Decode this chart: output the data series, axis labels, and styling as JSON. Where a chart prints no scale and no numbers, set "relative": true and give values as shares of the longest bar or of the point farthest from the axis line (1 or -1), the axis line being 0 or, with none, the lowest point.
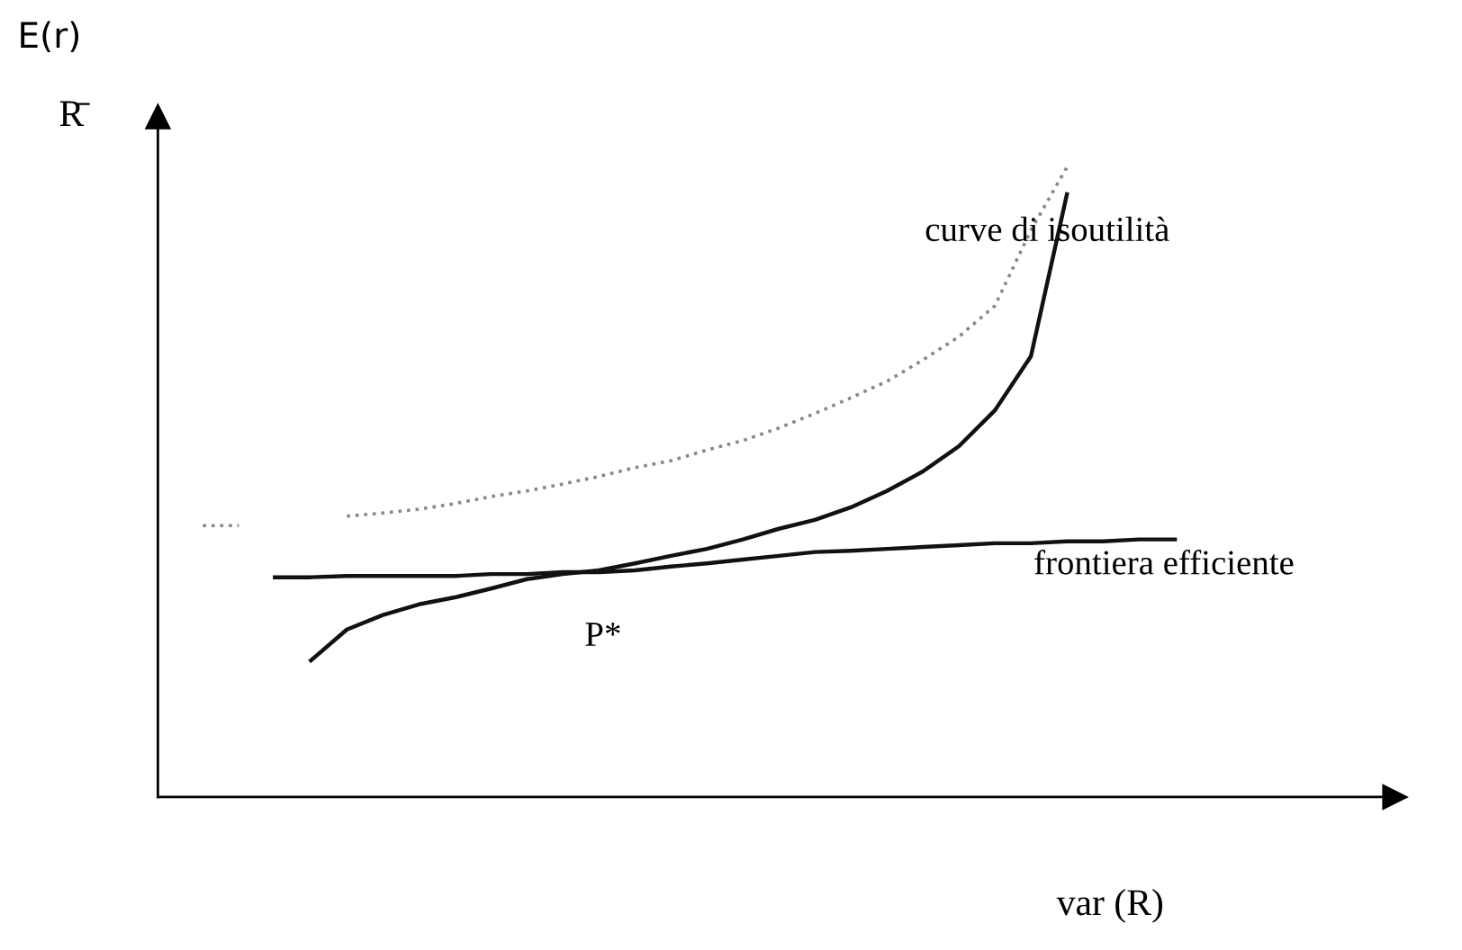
{
  "chart_data": {
    "type": "line",
    "relative": true,
    "title": "E(r)",
    "ylabel": "R̄",
    "xlabel": "var (R)",
    "categories": [
      null,
      null,
      null,
      null,
      null,
      null,
      null,
      null,
      null,
      null,
      null,
      null,
      null,
      null,
      null,
      null,
      null,
      null,
      null,
      null,
      null,
      null,
      null,
      null,
      null,
      null,
      null,
      null
    ],
    "series": [
      {
        "color": "#111111",
        "line_style": "solid",
        "values": [
          null,
          null,
          0.349,
          0.349,
          0.351,
          0.351,
          0.351,
          0.351,
          0.354,
          0.354,
          0.357,
          0.357,
          0.36,
          0.366,
          0.371,
          0.377,
          0.383,
          0.389,
          0.391,
          0.394,
          0.397,
          0.4,
          0.403,
          0.403,
          0.406,
          0.406,
          0.409,
          0.409
        ]
      },
      {
        "color": "#111111",
        "line_style": "solid",
        "values": [
          null,
          null,
          null,
          0.217,
          0.266,
          0.289,
          0.306,
          0.317,
          0.331,
          0.346,
          0.354,
          0.36,
          0.371,
          0.383,
          0.394,
          0.409,
          0.426,
          0.44,
          0.46,
          0.486,
          0.517,
          0.557,
          0.614,
          0.7,
          0.957,
          null,
          null,
          null
        ]
      },
      {
        "color": "#888888",
        "line_style": "dotted",
        "values": [
          0.431,
          0.431,
          null,
          null,
          0.446,
          0.451,
          0.457,
          0.466,
          0.477,
          0.486,
          0.497,
          0.509,
          0.523,
          0.534,
          0.551,
          0.566,
          0.586,
          0.609,
          0.634,
          0.66,
          0.694,
          0.731,
          0.78,
          0.9,
          1.0,
          null,
          null,
          null
        ]
      }
    ],
    "annotations": [
      "curve di isoutilità",
      "frontiera efficiente",
      "P*"
    ]
  }
}
